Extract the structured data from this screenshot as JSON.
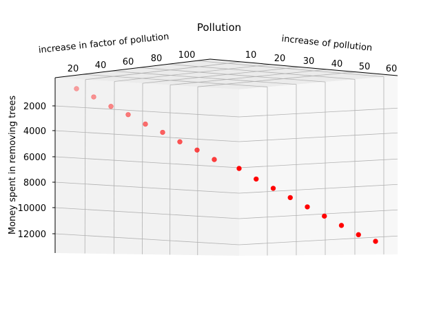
{
  "chart_data": {
    "type": "scatter",
    "projection": "3d",
    "title": "Pollution",
    "axis_labels": {
      "x": "increase of pollution",
      "y": "increase in factor of pollution",
      "z": "Money spent in removing trees"
    },
    "x_ticks": [
      "10",
      "20",
      "30",
      "40",
      "50",
      "60"
    ],
    "y_ticks": [
      "20",
      "40",
      "60",
      "80",
      "100"
    ],
    "z_ticks": [
      "2000",
      "4000",
      "6000",
      "8000",
      "10000",
      "12000"
    ],
    "z_inverted": true,
    "grid": true,
    "marker_color": "#ff0000",
    "points": [
      {
        "x": 5,
        "y": 10,
        "z": 500
      },
      {
        "x": 8,
        "y": 15,
        "z": 1200
      },
      {
        "x": 11,
        "y": 20,
        "z": 2000
      },
      {
        "x": 14,
        "y": 27,
        "z": 2700
      },
      {
        "x": 17,
        "y": 35,
        "z": 3500
      },
      {
        "x": 20,
        "y": 42,
        "z": 4200
      },
      {
        "x": 23,
        "y": 50,
        "z": 5000
      },
      {
        "x": 26,
        "y": 57,
        "z": 5700
      },
      {
        "x": 29,
        "y": 65,
        "z": 6500
      },
      {
        "x": 32,
        "y": 100,
        "z": 7500
      },
      {
        "x": 35,
        "y": 100,
        "z": 8300
      },
      {
        "x": 38,
        "y": 100,
        "z": 9000
      },
      {
        "x": 41,
        "y": 100,
        "z": 9700
      },
      {
        "x": 44,
        "y": 100,
        "z": 10400
      },
      {
        "x": 47,
        "y": 100,
        "z": 11100
      },
      {
        "x": 50,
        "y": 100,
        "z": 11800
      },
      {
        "x": 53,
        "y": 100,
        "z": 12500
      },
      {
        "x": 56,
        "y": 100,
        "z": 13000
      }
    ]
  }
}
